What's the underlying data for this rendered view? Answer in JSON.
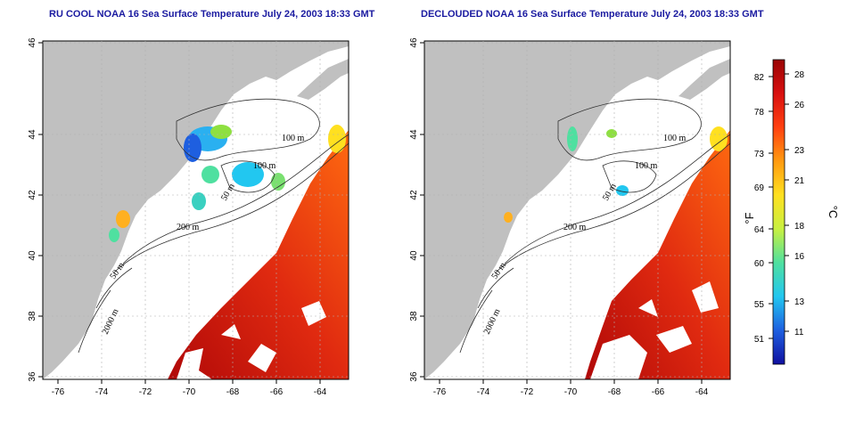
{
  "maps": [
    {
      "title": "RU COOL NOAA 16 Sea Surface Temperature July 24, 2003 18:33 GMT",
      "cloud_cover": "partial"
    },
    {
      "title": "DECLOUDED NOAA 16 Sea Surface Temperature July 24, 2003 18:33 GMT",
      "cloud_cover": "decloud"
    }
  ],
  "axes": {
    "lon_ticks": [
      "-76",
      "-74",
      "-72",
      "-70",
      "-68",
      "-66",
      "-64"
    ],
    "lat_ticks": [
      "36",
      "38",
      "40",
      "42",
      "44",
      "46"
    ]
  },
  "contour_labels": [
    "100 m",
    "100 m",
    "200 m",
    "50 m",
    "50 m",
    "2000 m"
  ],
  "colorbar": {
    "fahrenheit_ticks": [
      "82",
      "78",
      "73",
      "69",
      "64",
      "60",
      "55",
      "51"
    ],
    "celsius_ticks": [
      "28",
      "26",
      "23",
      "21",
      "18",
      "16",
      "13",
      "11"
    ],
    "fahrenheit_unit": "°F",
    "celsius_unit": "°C",
    "colors": [
      "#1010a0",
      "#1e5fe0",
      "#22c7f0",
      "#4fe0a0",
      "#c8f040",
      "#ffe020",
      "#ff9a10",
      "#ff4010",
      "#d81010",
      "#9a0505"
    ]
  },
  "colors": {
    "land": "#c0c0c0",
    "title": "#1a1aa0",
    "grid": "#b0b0b0",
    "contour": "#303030"
  }
}
